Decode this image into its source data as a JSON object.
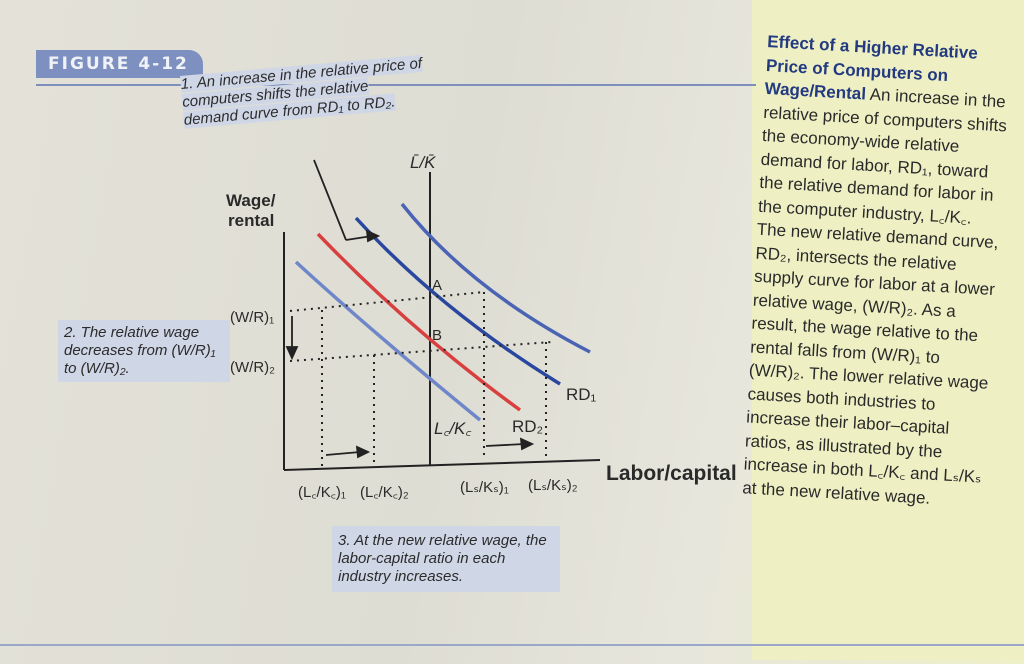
{
  "figure": {
    "label": "FIGURE 4-12"
  },
  "callouts": {
    "one": "1. An increase in the relative price of computers shifts the relative demand curve from RD₁ to RD₂.",
    "two": "2. The relative wage decreases from (W/R)₁ to (W/R)₂.",
    "three": "3. At the new relative wage, the labor-capital ratio in each industry increases."
  },
  "chart": {
    "y_axis_label_line1": "Wage/",
    "y_axis_label_line2": "rental",
    "x_axis_label": "Labor/capital",
    "vertical_line_label": "L̄/K̄",
    "wage1_label": "(W/R)₁",
    "wage2_label": "(W/R)₂",
    "point_a": "A",
    "point_b": "B",
    "curve_ls_ks": "Lₛ/Kₛ",
    "curve_rd1": "RD₁",
    "curve_rd2": "RD₂",
    "curve_lc_kc": "L꜀/K꜀",
    "tick_lc1": "(L꜀/K꜀)₁",
    "tick_lc2": "(L꜀/K꜀)₂",
    "tick_ls1": "(Lₛ/Kₛ)₁",
    "tick_ls2": "(Lₛ/Kₛ)₂",
    "colors": {
      "ls_curve": "#4a63b4",
      "lc_curve": "#6f86c9",
      "rd1_curve": "#2a47a0",
      "rd2_curve": "#d8403f"
    }
  },
  "caption": {
    "title": "Effect of a Higher Relative Price of Computers on Wage/Rental",
    "body": "An increase in the relative price of computers shifts the economy-wide relative demand for labor, RD₁, toward the relative demand for labor in the computer industry, L꜀/K꜀. The new relative demand curve, RD₂, intersects the relative supply curve for labor at a lower relative wage, (W/R)₂. As a result, the wage relative to the rental falls from (W/R)₁ to (W/R)₂. The lower relative wage causes both industries to increase their labor–capital ratios, as illustrated by the increase in both L꜀/K꜀ and Lₛ/Kₛ at the new relative wage."
  }
}
